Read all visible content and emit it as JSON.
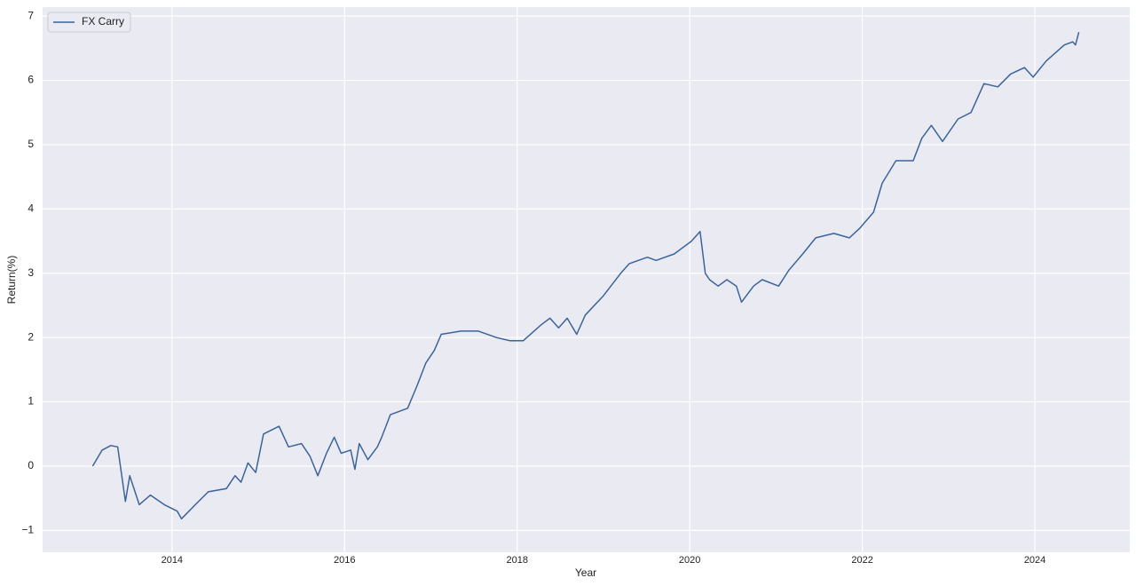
{
  "chart_data": {
    "type": "line",
    "xlabel": "Year",
    "ylabel": "Return(%)",
    "xlim": [
      2012.5,
      2025.1
    ],
    "xticks": [
      2014,
      2016,
      2018,
      2020,
      2022,
      2024
    ],
    "ylim": [
      -1.34,
      7.14
    ],
    "yticks": [
      {
        "value": -1,
        "label": "−1"
      },
      0,
      1,
      2,
      3,
      4,
      5,
      6,
      7
    ],
    "grid": true,
    "legend": "upper left",
    "background": "#eaeaf2",
    "x": [
      2013.08,
      2013.19,
      2013.29,
      2013.37,
      2013.46,
      2013.51,
      2013.62,
      2013.75,
      2013.91,
      2014.06,
      2014.11,
      2014.27,
      2014.42,
      2014.63,
      2014.73,
      2014.8,
      2014.88,
      2014.97,
      2015.06,
      2015.24,
      2015.35,
      2015.5,
      2015.6,
      2015.69,
      2015.79,
      2015.88,
      2015.96,
      2016.07,
      2016.12,
      2016.17,
      2016.27,
      2016.38,
      2016.43,
      2016.53,
      2016.73,
      2016.84,
      2016.94,
      2017.04,
      2017.12,
      2017.35,
      2017.55,
      2017.76,
      2017.92,
      2018.07,
      2018.28,
      2018.38,
      2018.48,
      2018.58,
      2018.69,
      2018.79,
      2019.0,
      2019.2,
      2019.3,
      2019.51,
      2019.61,
      2019.82,
      2020.02,
      2020.12,
      2020.18,
      2020.23,
      2020.33,
      2020.43,
      2020.54,
      2020.6,
      2020.74,
      2020.84,
      2021.03,
      2021.15,
      2021.31,
      2021.46,
      2021.67,
      2021.85,
      2021.97,
      2022.13,
      2022.23,
      2022.39,
      2022.59,
      2022.69,
      2022.8,
      2022.93,
      2023.11,
      2023.26,
      2023.41,
      2023.57,
      2023.72,
      2023.88,
      2023.98,
      2024.13,
      2024.34,
      2024.44,
      2024.47,
      2024.51
    ],
    "series": [
      {
        "name": "FX Carry",
        "color": "#3b6499",
        "values": [
          0,
          0.25,
          0.32,
          0.3,
          -0.55,
          -0.15,
          -0.6,
          -0.45,
          -0.6,
          -0.7,
          -0.82,
          -0.6,
          -0.4,
          -0.35,
          -0.15,
          -0.25,
          0.05,
          -0.1,
          0.5,
          0.62,
          0.3,
          0.35,
          0.15,
          -0.15,
          0.2,
          0.45,
          0.2,
          0.25,
          -0.05,
          0.35,
          0.1,
          0.3,
          0.45,
          0.8,
          0.9,
          1.25,
          1.6,
          1.8,
          2.05,
          2.1,
          2.1,
          2.0,
          1.95,
          1.95,
          2.2,
          2.3,
          2.15,
          2.3,
          2.05,
          2.35,
          2.65,
          3.0,
          3.15,
          3.25,
          3.2,
          3.3,
          3.5,
          3.65,
          3.0,
          2.9,
          2.8,
          2.9,
          2.8,
          2.55,
          2.8,
          2.9,
          2.8,
          3.05,
          3.3,
          3.55,
          3.62,
          3.55,
          3.7,
          3.95,
          4.4,
          4.75,
          4.75,
          5.1,
          5.3,
          5.05,
          5.4,
          5.5,
          5.95,
          5.9,
          6.1,
          6.2,
          6.05,
          6.3,
          6.55,
          6.6,
          6.55,
          6.75
        ]
      }
    ]
  }
}
